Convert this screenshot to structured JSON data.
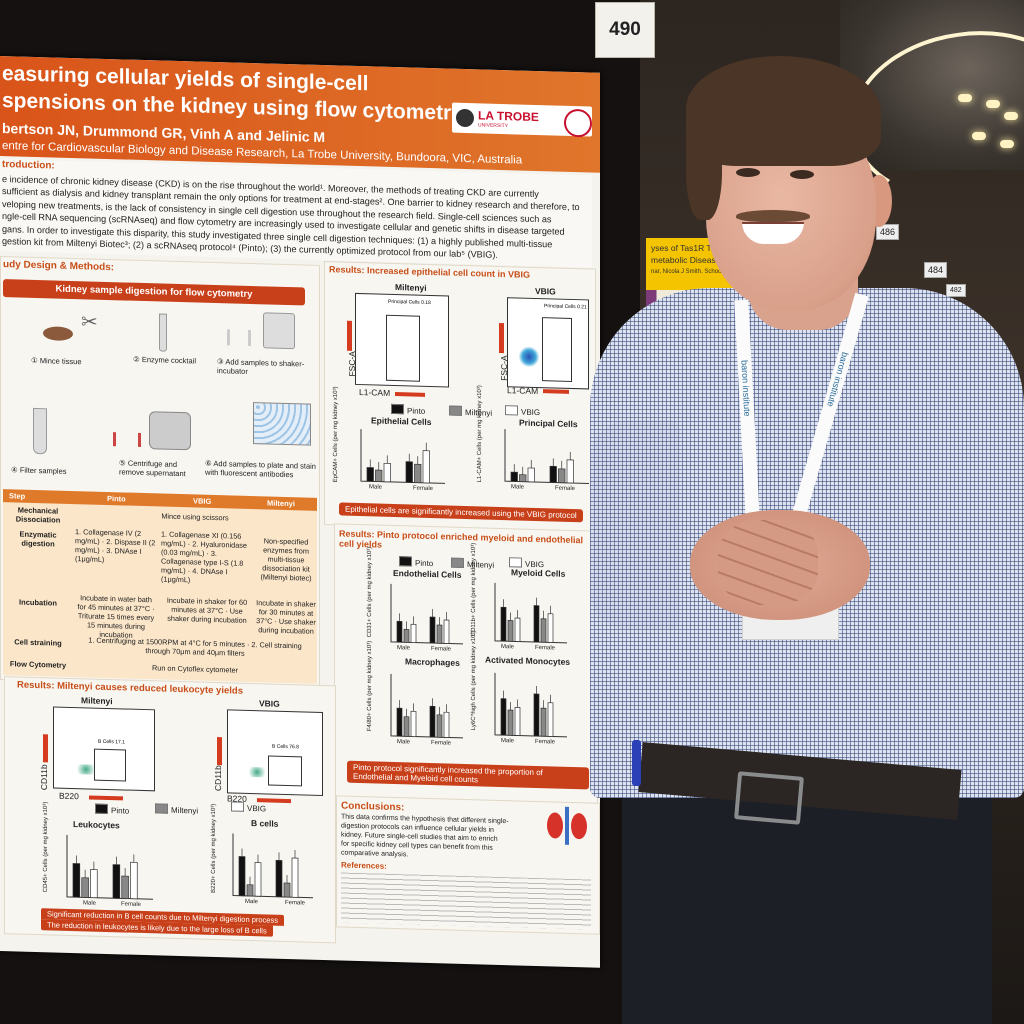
{
  "scene": {
    "board_number": "490",
    "poster2": {
      "header": [
        "yses of Tas1R Taste",
        "metabolic Disease"
      ],
      "authors": "nar, Nicola J Smith. School of Biomedical"
    },
    "tags": [
      "486",
      "484",
      "482"
    ],
    "lanyard_text": "baron institute"
  },
  "poster": {
    "title_line1": "easuring cellular yields of single-cell",
    "title_line2": "spensions on the kidney using flow cytometry",
    "authors": "bertson JN, Drummond GR, Vinh A and Jelinic M",
    "affiliation": "entre for Cardiovascular Biology and Disease Research, La Trobe University, Bundoora, VIC, Australia",
    "logo": {
      "name": "LA TROBE",
      "sub": "UNIVERSITY"
    },
    "intro_heading": "troduction:",
    "intro_lines": [
      "e incidence of chronic kidney disease (CKD) is on the rise throughout the world¹. Moreover, the methods of treating CKD are currently",
      "sufficient as dialysis and kidney transplant remain the only options for treatment at end-stages². One barrier to kidney research and therefore, to",
      "veloping new treatments, is the lack of consistency in single cell digestion use throughout the research field. Single-cell sciences such as",
      "ngle-cell RNA sequencing (scRNAseq) and flow cytometry are increasingly used to investigate cellular and genetic shifts in disease targeted",
      "gans. In order to investigate this disparity, this study investigated three single cell digestion techniques: (1) a highly published multi-tissue",
      "gestion kit from Miltenyi Biotec³; (2) a scRNAseq protocol⁴ (Pinto); (3) the currently optimized protocol from our lab⁵ (VBIG)."
    ],
    "methods_heading": "udy Design & Methods:",
    "methods_banner": "Kidney sample digestion for flow cytometry",
    "steps": [
      {
        "n": "1",
        "label": "Mince tissue"
      },
      {
        "n": "2",
        "label": "Enzyme cocktail"
      },
      {
        "n": "3",
        "label": "Add samples to shaker-incubator"
      },
      {
        "n": "4",
        "label": "Filter samples"
      },
      {
        "n": "5",
        "label": "Centrifuge and remove supernatant"
      },
      {
        "n": "6",
        "label": "Add samples to plate and stain with fluorescent antibodies"
      }
    ],
    "table": {
      "headers": [
        "Step",
        "Pinto",
        "VBIG",
        "Miltenyi"
      ],
      "rows": [
        {
          "step": "Mechanical Dissociation",
          "span": "Mince using scissors"
        },
        {
          "step": "Enzymatic digestion",
          "pinto": "1. Collagenase IV (2 mg/mL) · 2. Dispase II (2 mg/mL) · 3. DNAse I (1μg/mL)",
          "vbig": "1. Collagenase XI (0.156 mg/mL) · 2. Hyaluronidase (0.03 mg/mL) · 3. Collagenase type I-S (1.8 mg/mL) · 4. DNAse I (1μg/mL)",
          "miltenyi": "Non-specified enzymes from multi-tissue dissociation kit (Miltenyi biotec)"
        },
        {
          "step": "Incubation",
          "pinto": "Incubate in water bath for 45 minutes at 37°C · Triturate 15 times every 15 minutes during incubation",
          "vbig": "Incubate in shaker for 60 minutes at 37°C · Use shaker during incubation",
          "miltenyi": "Incubate in shaker for 30 minutes at 37°C · Use shaker during incubation"
        },
        {
          "step": "Cell straining",
          "span": "1. Centrifuging at 1500RPM at 4°C for 5 minutes · 2. Cell straining through 70μm and 40μm filters"
        },
        {
          "step": "Flow Cytometry",
          "span": "Run on Cytoflex cytometer"
        }
      ]
    },
    "res1": {
      "heading": "Results: Increased epithelial cell count in VBIG",
      "plot_left": "Miltenyi",
      "plot_right": "VBIG",
      "gate_left": "Principal Cells 0.18",
      "gate_right": "Principal Cells 0.21",
      "y_axis": "FSC-A",
      "x_axis": "L1-CAM",
      "legend": [
        "Pinto",
        "Miltenyi",
        "VBIG"
      ],
      "chart1": "Epithelial Cells",
      "chart2": "Principal Cells",
      "ylab1": "EpCAM+ Cells (per mg kidney x10³)",
      "ylab2": "L1-CAM+ Cells (per mg kidney x10³)",
      "groups": [
        "Male",
        "Female"
      ],
      "conclusion": "Epithelial cells are significantly increased using the VBIG protocol"
    },
    "res2": {
      "heading": "Results: Pinto protocol enriched myeloid and endothelial cell yields",
      "legend": [
        "Pinto",
        "Miltenyi",
        "VBIG"
      ],
      "charts": [
        "Endothelial Cells",
        "Myeloid Cells",
        "Macrophages",
        "Activated Monocytes"
      ],
      "ylabs": [
        "CD31+ Cells (per mg kidney x10³)",
        "CD11b+ Cells (per mg kidney x10³)",
        "F4/80+ Cells (per mg kidney x10³)",
        "Ly6C^high Cells (per mg kidney x10³)"
      ],
      "groups": [
        "Male",
        "Female"
      ],
      "conclusion": "Pinto protocol significantly increased the proportion of Endothelial and Myeloid cell counts"
    },
    "res3": {
      "heading": "Results: Miltenyi causes reduced leukocyte yields",
      "plot_left": "Miltenyi",
      "plot_right": "VBIG",
      "gate_left": "B Cells 17.1",
      "gate_right": "B Cells 76.8",
      "y_axis": "CD11b",
      "x_axis": "B220",
      "legend": [
        "Pinto",
        "Miltenyi",
        "VBIG"
      ],
      "chart1": "Leukocytes",
      "chart2": "B cells",
      "ylab1": "CD45+ Cells (per mg kidney x10³)",
      "ylab2": "B220+ Cells (per mg kidney x10³)",
      "groups": [
        "Male",
        "Female"
      ],
      "conclusion_1": "Significant reduction in B cell counts due to Miltenyi digestion process",
      "conclusion_2": "The reduction in leukocytes is likely due to the large loss of B cells"
    },
    "conclusions": {
      "heading": "Conclusions:",
      "lines": [
        "This data confirms the hypothesis that different single-",
        "digestion protocols can influence cellular yields in",
        "kidney. Future single-cell studies that aim to enrich",
        "for specific kidney cell types can benefit from this",
        "comparative analysis."
      ],
      "ref_heading": "References:"
    }
  },
  "colors": {
    "poster_orange": "#d9541a",
    "shirt_blue": "#304278",
    "lanyard_text": "#2a6c9a"
  }
}
